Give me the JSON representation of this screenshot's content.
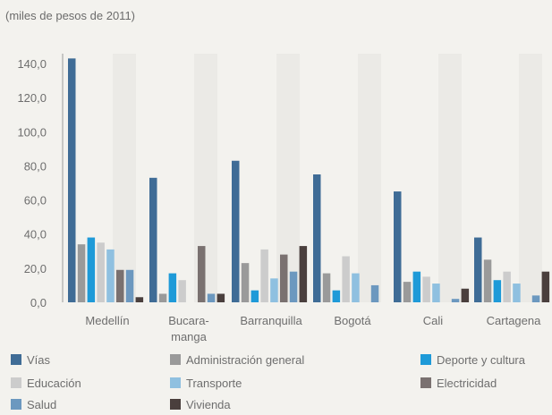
{
  "chart_data": {
    "type": "bar",
    "subtitle": "(miles de pesos de 2011)",
    "categories": [
      [
        "Medellín"
      ],
      [
        "Bucara-",
        "manga"
      ],
      [
        "Barranquilla"
      ],
      [
        "Bogotá"
      ],
      [
        "Cali"
      ],
      [
        "Cartagena"
      ]
    ],
    "yticks": [
      "0,0",
      "20,0",
      "40,0",
      "60,0",
      "80,0",
      "100,0",
      "120,0",
      "140,0"
    ],
    "ylim": [
      0,
      150
    ],
    "series": [
      {
        "name": "Vías",
        "color": "#3f6c96",
        "values": [
          143,
          73,
          83,
          75,
          65,
          38
        ]
      },
      {
        "name": "Administración general",
        "color": "#9a9a9a",
        "values": [
          34,
          5,
          23,
          17,
          12,
          25
        ]
      },
      {
        "name": "Deporte y cultura",
        "color": "#1e9ad8",
        "values": [
          38,
          17,
          7,
          7,
          18,
          13
        ]
      },
      {
        "name": "Educación",
        "color": "#cccccc",
        "values": [
          35,
          13,
          31,
          27,
          15,
          18
        ]
      },
      {
        "name": "Transporte",
        "color": "#8fc0e0",
        "values": [
          31,
          0,
          14,
          17,
          11,
          11
        ]
      },
      {
        "name": "Electricidad",
        "color": "#7a7170",
        "values": [
          19,
          33,
          28,
          0,
          0,
          0
        ]
      },
      {
        "name": "Salud",
        "color": "#6c98bf",
        "values": [
          19,
          5,
          18,
          10,
          2,
          4
        ]
      },
      {
        "name": "Vivienda",
        "color": "#4a3f3d",
        "values": [
          3,
          5,
          33,
          0,
          8,
          18
        ]
      }
    ],
    "legend_position": "bottom"
  }
}
